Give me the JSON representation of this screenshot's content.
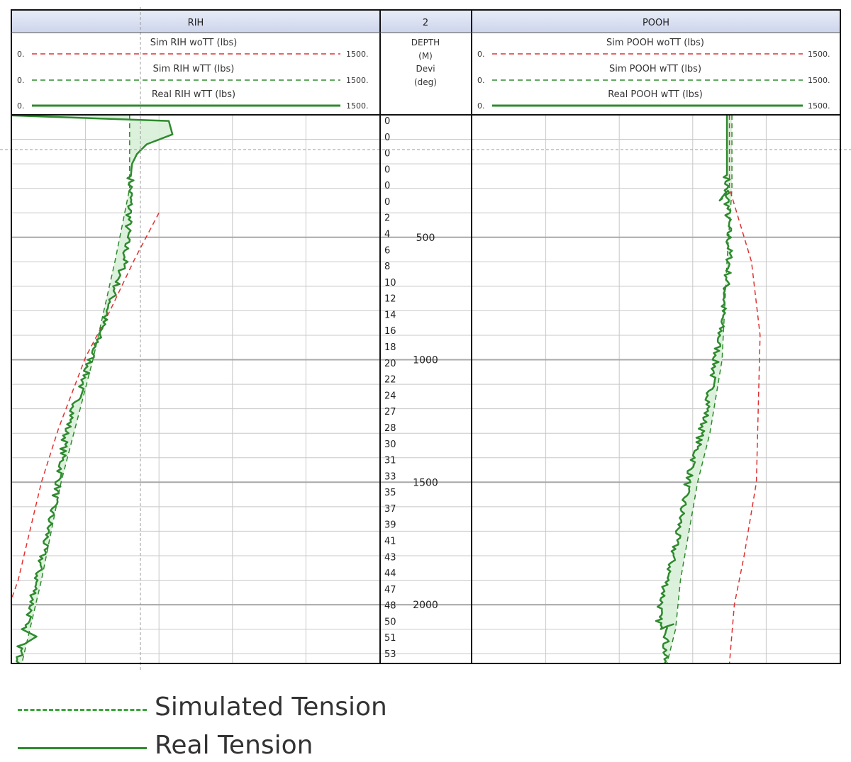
{
  "chart_data": {
    "type": "line",
    "tracks": [
      {
        "header": "RIH",
        "curves": [
          {
            "name": "Sim RIH woTT (lbs)",
            "min": "0.",
            "max": "1500.",
            "style": "dashed",
            "color": "#e03030"
          },
          {
            "name": "Sim RIH wTT (lbs)",
            "min": "0.",
            "max": "1500.",
            "style": "dashed",
            "color": "#2e8a2e"
          },
          {
            "name": "Real RIH wTT (lbs)",
            "min": "0.",
            "max": "1500.",
            "style": "solid",
            "color": "#2e8a2e"
          }
        ]
      },
      {
        "header": "2",
        "depth_title": [
          "DEPTH",
          "(M)"
        ],
        "devi_title": [
          "Devi",
          "(deg)"
        ]
      },
      {
        "header": "POOH",
        "curves": [
          {
            "name": "Sim POOH woTT (lbs)",
            "min": "0.",
            "max": "1500.",
            "style": "dashed",
            "color": "#e03030"
          },
          {
            "name": "Sim POOH wTT (lbs)",
            "min": "0.",
            "max": "1500.",
            "style": "dashed",
            "color": "#2e8a2e"
          },
          {
            "name": "Real POOH wTT (lbs)",
            "min": "0.",
            "max": "1500.",
            "style": "solid",
            "color": "#2e8a2e"
          }
        ]
      }
    ],
    "x_range": [
      0,
      1500
    ],
    "depth_range": [
      0,
      2240
    ],
    "depth_labels": [
      "500",
      "1000",
      "1500",
      "2000"
    ],
    "deviation_labels": [
      "0",
      "0",
      "0",
      "0",
      "0",
      "0",
      "2",
      "4",
      "6",
      "8",
      "10",
      "12",
      "14",
      "16",
      "18",
      "20",
      "22",
      "24",
      "27",
      "28",
      "30",
      "31",
      "33",
      "35",
      "37",
      "39",
      "41",
      "43",
      "44",
      "47",
      "48",
      "50",
      "51",
      "53"
    ],
    "rih_sim_wott": [
      [
        600,
        400
      ],
      [
        500,
        590
      ],
      [
        400,
        800
      ],
      [
        300,
        990
      ],
      [
        190,
        1280
      ],
      [
        120,
        1500
      ],
      [
        25,
        1900
      ],
      [
        -95,
        2240
      ]
    ],
    "rih_sim_wtt": [
      [
        480,
        0
      ],
      [
        480,
        200
      ],
      [
        480,
        300
      ],
      [
        420,
        600
      ],
      [
        330,
        1000
      ],
      [
        200,
        1500
      ],
      [
        120,
        1900
      ],
      [
        40,
        2240
      ]
    ],
    "rih_real_wtt": [
      [
        -70,
        0
      ],
      [
        640,
        25
      ],
      [
        655,
        80
      ],
      [
        550,
        120
      ],
      [
        510,
        160
      ],
      [
        490,
        200
      ],
      [
        485,
        250
      ],
      [
        480,
        400
      ],
      [
        460,
        600
      ],
      [
        390,
        800
      ],
      [
        320,
        1000
      ],
      [
        220,
        1300
      ],
      [
        190,
        1500
      ],
      [
        135,
        1750
      ],
      [
        100,
        1900
      ],
      [
        70,
        2050
      ],
      [
        40,
        2100
      ],
      [
        100,
        2130
      ],
      [
        35,
        2170
      ],
      [
        30,
        2240
      ]
    ],
    "pooh_sim_wott": [
      [
        1050,
        0
      ],
      [
        1050,
        200
      ],
      [
        1050,
        300
      ],
      [
        1140,
        600
      ],
      [
        1175,
        900
      ],
      [
        1160,
        1500
      ],
      [
        1110,
        1800
      ],
      [
        1070,
        2000
      ],
      [
        1050,
        2240
      ]
    ],
    "pooh_sim_wtt": [
      [
        1060,
        0
      ],
      [
        1060,
        300
      ],
      [
        1040,
        600
      ],
      [
        1020,
        1000
      ],
      [
        970,
        1300
      ],
      [
        920,
        1500
      ],
      [
        850,
        1900
      ],
      [
        830,
        2100
      ],
      [
        795,
        2240
      ]
    ],
    "pooh_real_wtt": [
      [
        1040,
        0
      ],
      [
        1040,
        300
      ],
      [
        1010,
        350
      ],
      [
        1040,
        310
      ],
      [
        1050,
        600
      ],
      [
        1010,
        900
      ],
      [
        960,
        1200
      ],
      [
        880,
        1500
      ],
      [
        820,
        1800
      ],
      [
        770,
        2000
      ],
      [
        760,
        2050
      ],
      [
        770,
        2100
      ],
      [
        810,
        2080
      ],
      [
        790,
        2150
      ],
      [
        785,
        2240
      ]
    ],
    "grid": true
  },
  "legend": [
    {
      "label": "Simulated Tension",
      "style": "dashed"
    },
    {
      "label": "Real Tension",
      "style": "solid"
    }
  ],
  "colors": {
    "sim_green": "#2e8a2e",
    "red": "#e03030",
    "fill": "#d8f0d8",
    "header_bg": "#dde3f3",
    "grid": "#c8c8c8"
  }
}
